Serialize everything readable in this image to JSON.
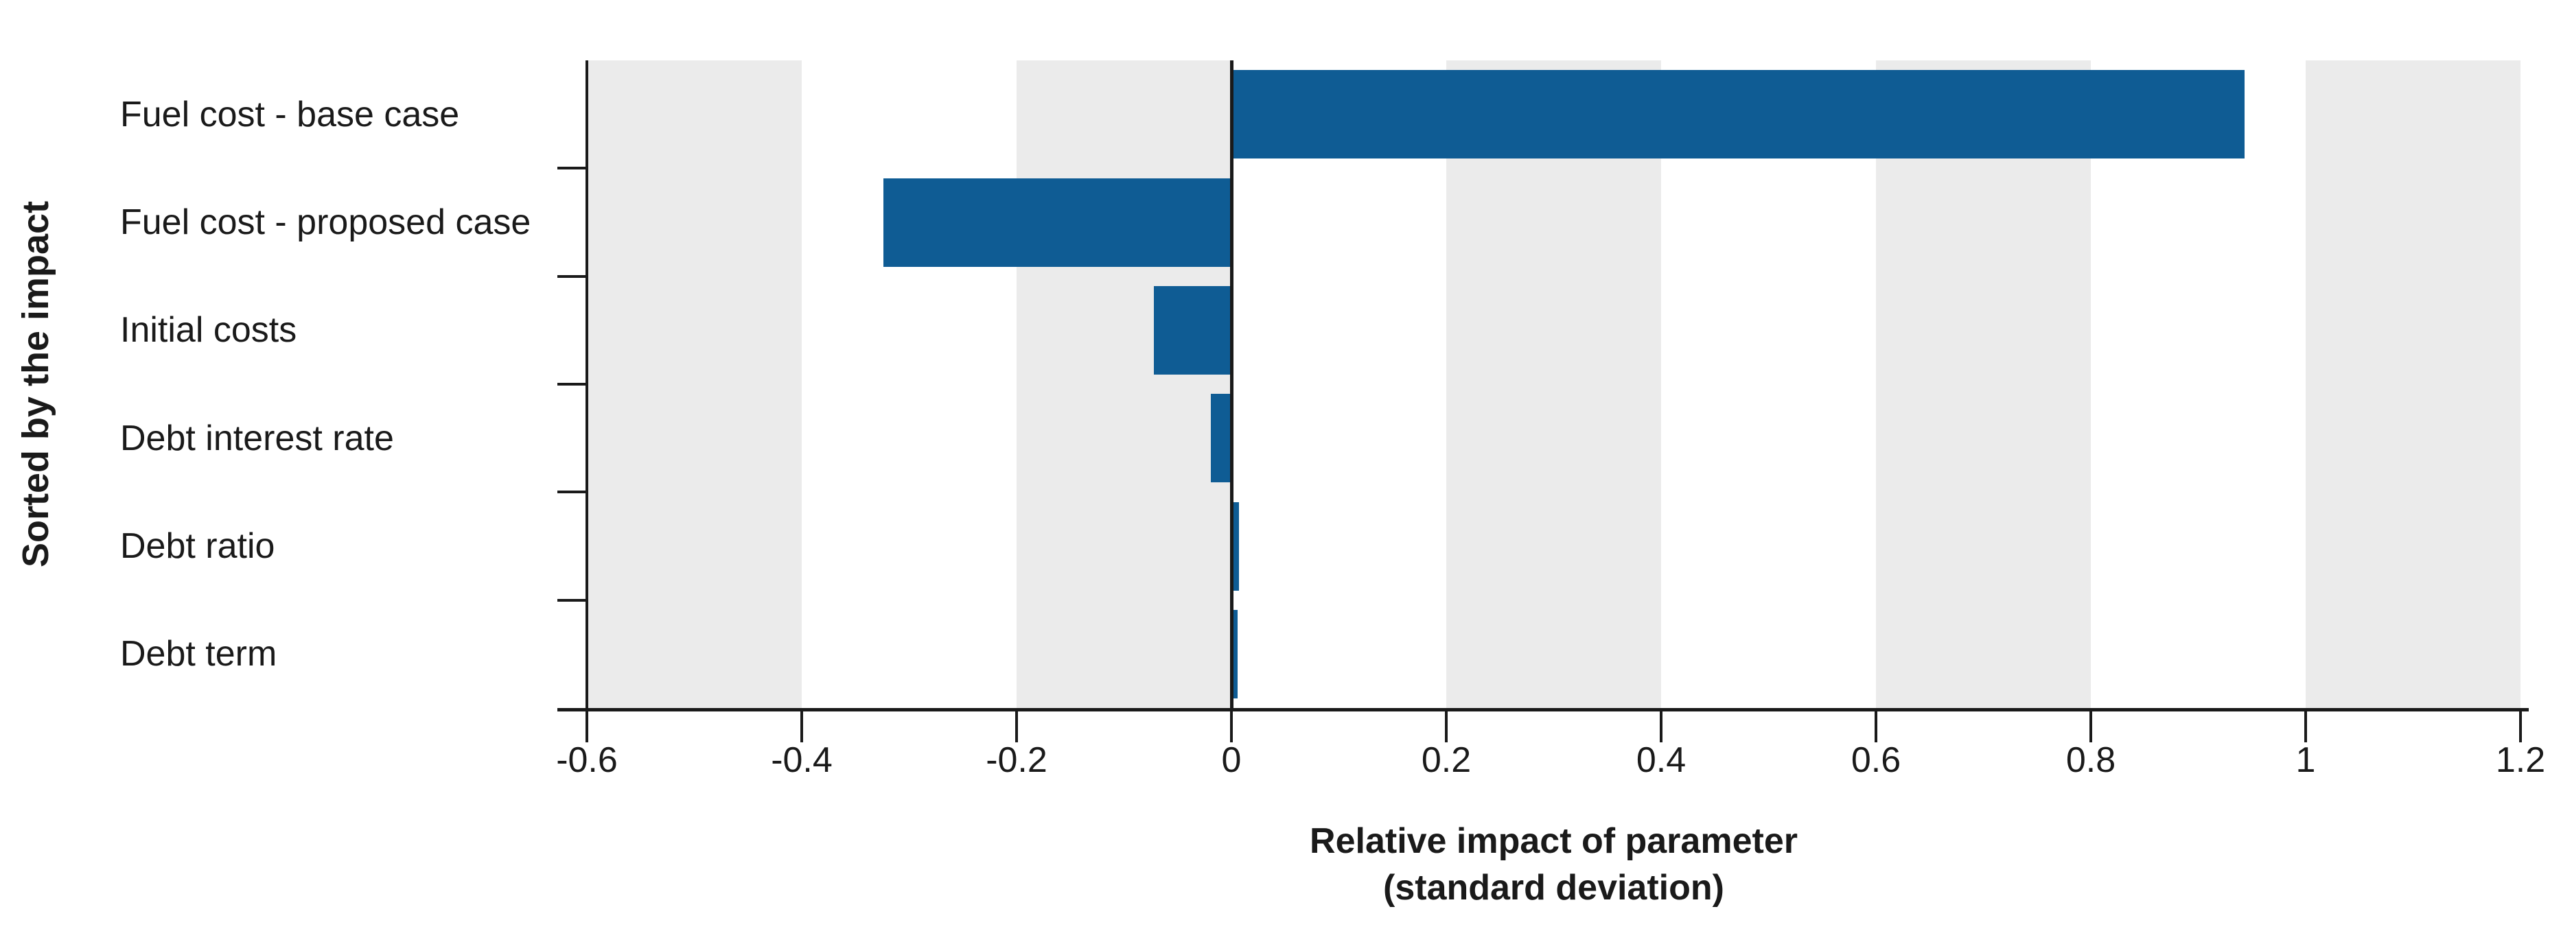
{
  "chart_data": {
    "type": "bar",
    "orientation": "horizontal",
    "title": "",
    "categories": [
      "Fuel cost - base case",
      "Fuel cost - proposed case",
      "Initial costs",
      "Debt interest rate",
      "Debt ratio",
      "Debt term"
    ],
    "values": [
      0.943,
      -0.324,
      -0.072,
      -0.019,
      0.007,
      0.006
    ],
    "xlabel_line1": "Relative impact of parameter",
    "xlabel_line2": "(standard deviation)",
    "ylabel": "Sorted by the impact",
    "xlim": [
      -0.6,
      1.2
    ],
    "xticks": [
      -0.6,
      -0.4,
      -0.2,
      0,
      0.2,
      0.4,
      0.6,
      0.8,
      1,
      1.2
    ],
    "xtick_labels": [
      "-0.6",
      "-0.4",
      "-0.2",
      "0",
      "0.2",
      "0.4",
      "0.6",
      "0.8",
      "1",
      "1.2"
    ],
    "legend": "none",
    "grid": "alternating-vertical-bands",
    "colors": {
      "bar": "#0F5C94",
      "band": "#EBEBEB",
      "axis": "#1A1A1A",
      "background": "#FFFFFF",
      "text": "#1A1A1A"
    }
  }
}
